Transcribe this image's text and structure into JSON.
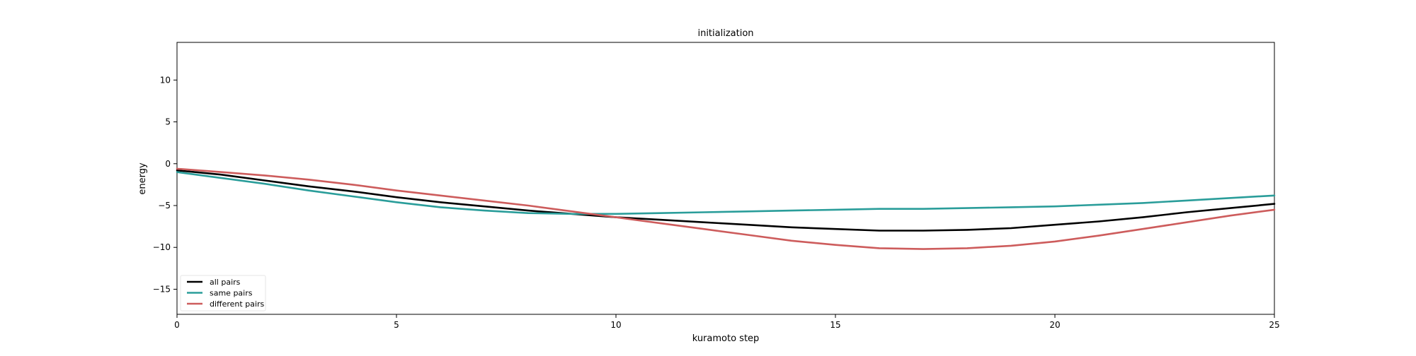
{
  "chart_data": {
    "type": "line",
    "title": "initialization",
    "xlabel": "kuramoto step",
    "ylabel": "energy",
    "xlim": [
      0,
      25
    ],
    "ylim": [
      -18,
      14.5
    ],
    "xticks": [
      0,
      5,
      10,
      15,
      20,
      25
    ],
    "yticks": [
      -15,
      -10,
      -5,
      0,
      5,
      10
    ],
    "ytick_labels": [
      "−15",
      "−10",
      "−5",
      "0",
      "5",
      "10"
    ],
    "grid": false,
    "legend_position": "lower-left",
    "x": [
      0,
      1,
      2,
      3,
      4,
      5,
      6,
      7,
      8,
      9,
      10,
      11,
      12,
      13,
      14,
      15,
      16,
      17,
      18,
      19,
      20,
      21,
      22,
      23,
      24,
      25
    ],
    "series": [
      {
        "name": "all pairs",
        "color": "#000000",
        "values": [
          -0.8,
          -1.3,
          -2.0,
          -2.7,
          -3.3,
          -4.0,
          -4.6,
          -5.1,
          -5.6,
          -6.0,
          -6.4,
          -6.7,
          -7.0,
          -7.3,
          -7.6,
          -7.8,
          -8.0,
          -8.0,
          -7.9,
          -7.7,
          -7.3,
          -6.9,
          -6.4,
          -5.8,
          -5.3,
          -4.8
        ]
      },
      {
        "name": "same pairs",
        "color": "#2a9d9a",
        "values": [
          -1.0,
          -1.7,
          -2.4,
          -3.2,
          -3.9,
          -4.6,
          -5.2,
          -5.6,
          -5.9,
          -6.0,
          -6.0,
          -5.9,
          -5.8,
          -5.7,
          -5.6,
          -5.5,
          -5.4,
          -5.4,
          -5.3,
          -5.2,
          -5.1,
          -4.9,
          -4.7,
          -4.4,
          -4.1,
          -3.8
        ]
      },
      {
        "name": "different pairs",
        "color": "#cd5c5c",
        "values": [
          -0.6,
          -1.0,
          -1.4,
          -1.9,
          -2.5,
          -3.2,
          -3.8,
          -4.4,
          -5.0,
          -5.7,
          -6.4,
          -7.1,
          -7.8,
          -8.5,
          -9.2,
          -9.7,
          -10.1,
          -10.2,
          -10.1,
          -9.8,
          -9.3,
          -8.6,
          -7.8,
          -7.0,
          -6.2,
          -5.5
        ]
      }
    ]
  }
}
